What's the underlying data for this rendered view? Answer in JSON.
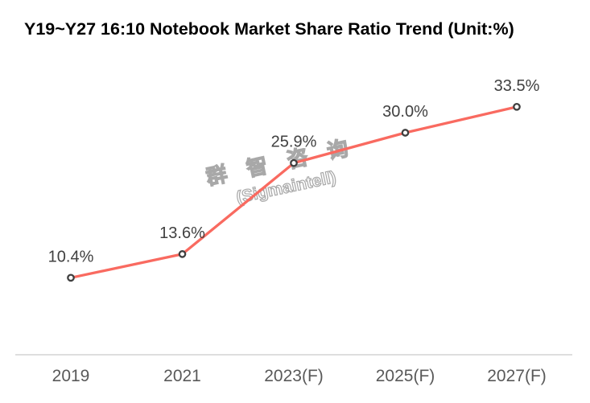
{
  "title": "Y19~Y27 16:10 Notebook Market Share Ratio Trend (Unit:%)",
  "watermark": {
    "line1": "群 智 咨 询",
    "line2": "(Sigmaintell)"
  },
  "colors": {
    "line": "#F96A60",
    "marker_ring": "#3F3F3F",
    "marker_fill": "#FFFFFF",
    "data_label": "#404040",
    "axis_label": "#595959",
    "axis_line": "#D9D9D9",
    "title": "#000000",
    "background": "#FFFFFF",
    "watermark_outline": "#A8A8A8"
  },
  "chart_data": {
    "type": "line",
    "title": "Y19~Y27 16:10 Notebook Market Share Ratio Trend (Unit:%)",
    "categories": [
      "2019",
      "2021",
      "2023(F)",
      "2025(F)",
      "2027(F)"
    ],
    "values": [
      10.4,
      13.6,
      25.9,
      30.0,
      33.5
    ],
    "data_labels": [
      "10.4%",
      "13.6%",
      "25.9%",
      "30.0%",
      "33.5%"
    ],
    "series_name": "16:10 Notebook Market Share",
    "xlabel": "",
    "ylabel": "",
    "unit": "%",
    "ylim": [
      0,
      40
    ],
    "grid": false,
    "legend": false,
    "marker": "circle-open",
    "data_label_position": "above"
  }
}
